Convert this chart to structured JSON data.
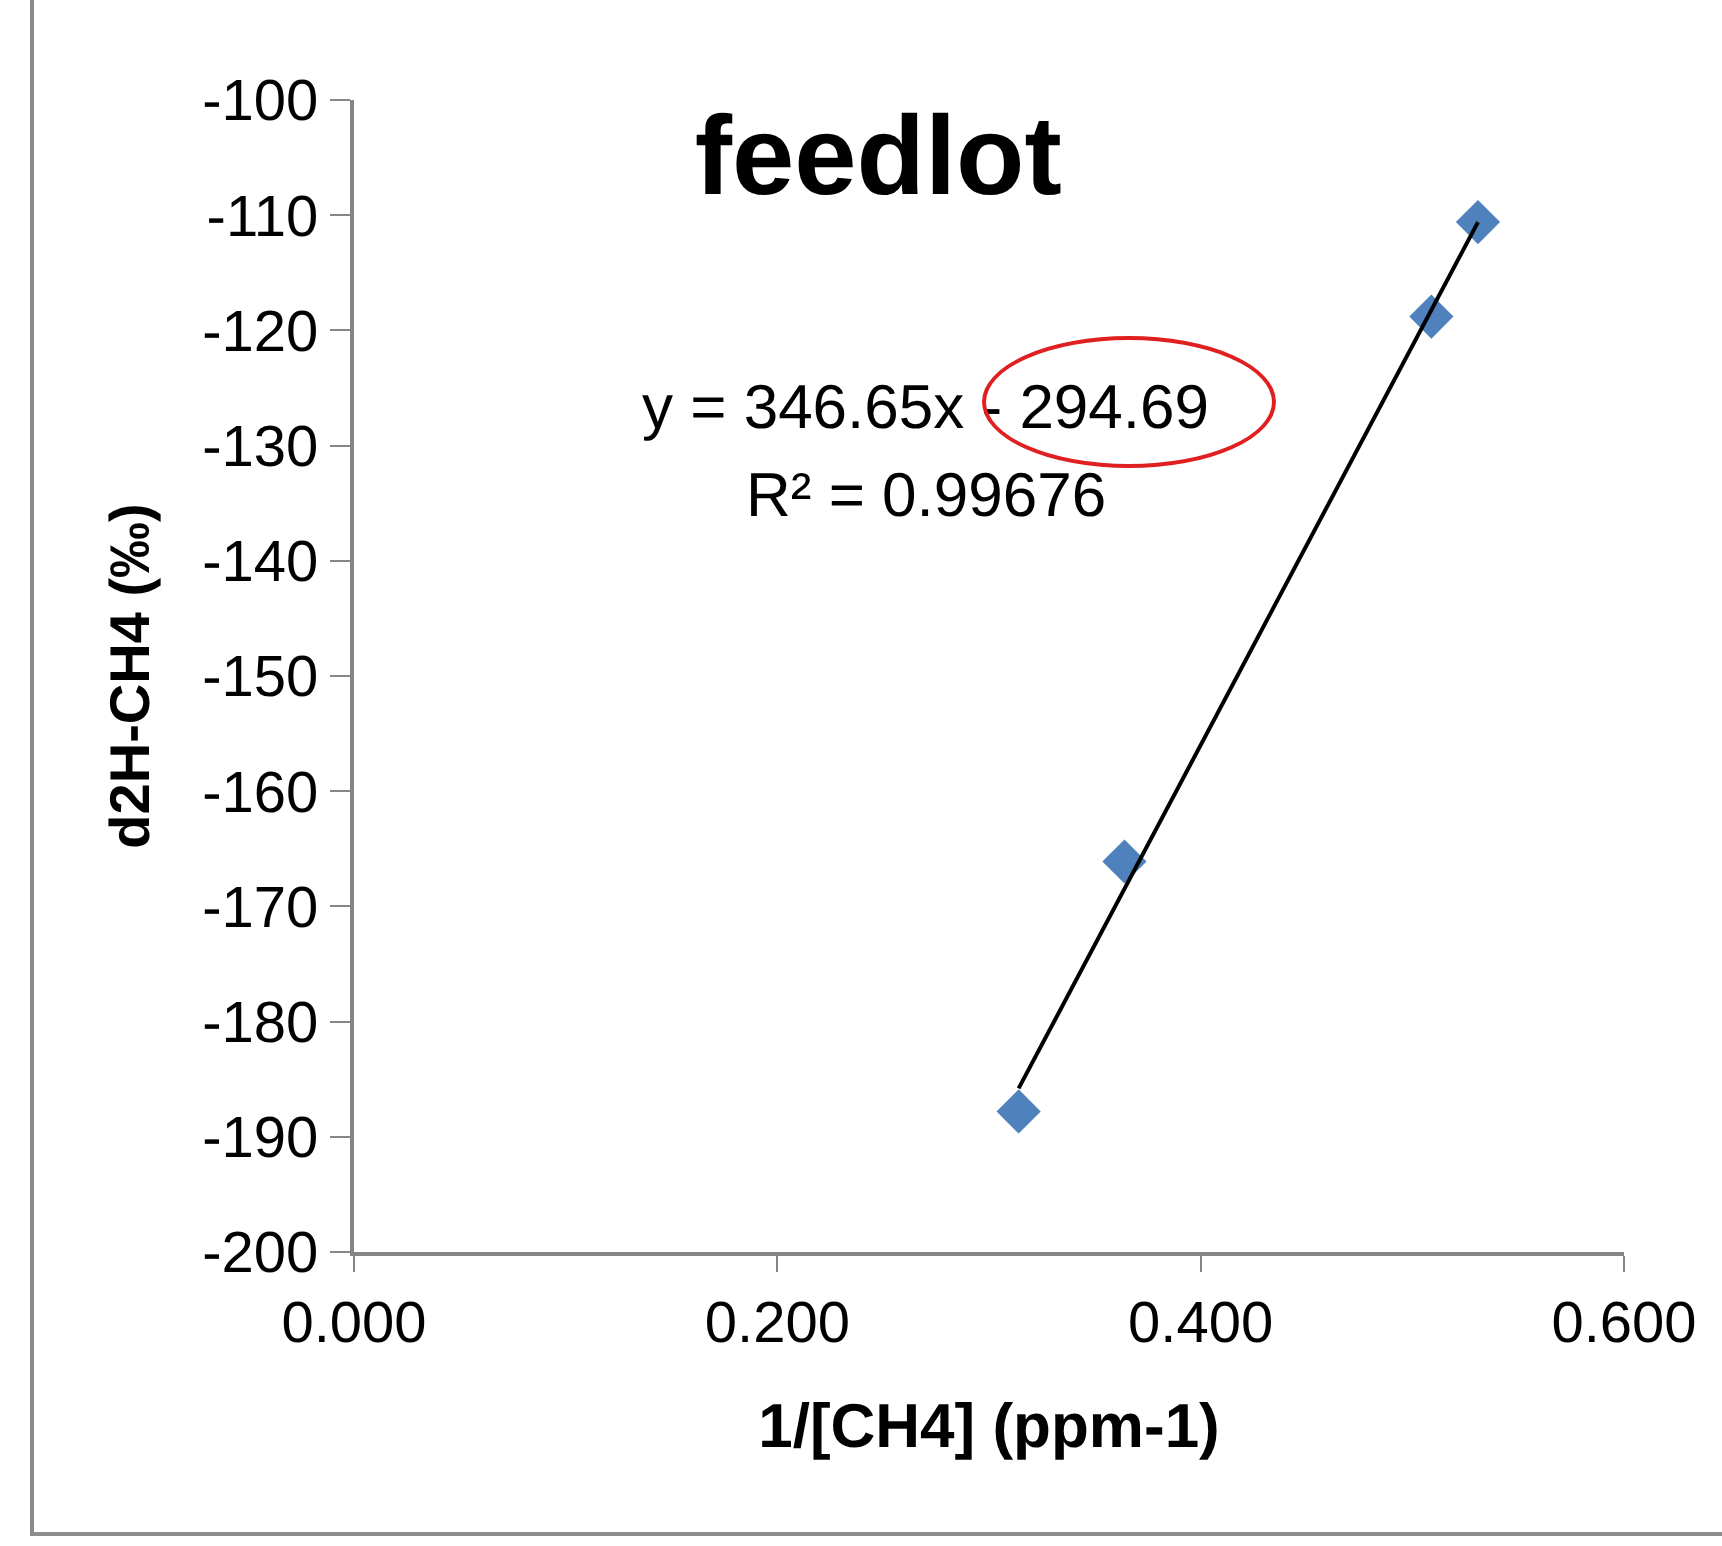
{
  "chart_data": {
    "type": "scatter",
    "title": "feedlot",
    "xlabel": "1/[CH4] (ppm-1)",
    "ylabel": "d2H-CH4 (‰)",
    "x": [
      0.314,
      0.364,
      0.509,
      0.531
    ],
    "series": [
      {
        "color": "#4f81bd",
        "values": [
          -187.8,
          -166.1,
          -118.8,
          -110.6
        ],
        "marker": "diamond"
      },
      {
        "type": "line",
        "color": "#000000",
        "x": [
          0.314,
          0.531
        ],
        "values": [
          -185.8,
          -110.6
        ],
        "marker": "none"
      }
    ],
    "annotations": [
      "y = 346.65x - 294.69",
      "R² = 0.99676"
    ],
    "xlim": [
      0,
      0.6
    ],
    "xticks": [
      {
        "value": 0,
        "label": "0.000"
      },
      {
        "value": 0.2,
        "label": "0.200"
      },
      {
        "value": 0.4,
        "label": "0.400"
      },
      {
        "value": 0.6,
        "label": "0.600"
      }
    ],
    "ylim": [
      -200,
      -100
    ],
    "yticks": [
      -200,
      -190,
      -180,
      -170,
      -160,
      -150,
      -140,
      -130,
      -120,
      -110,
      -100
    ],
    "grid": false
  }
}
